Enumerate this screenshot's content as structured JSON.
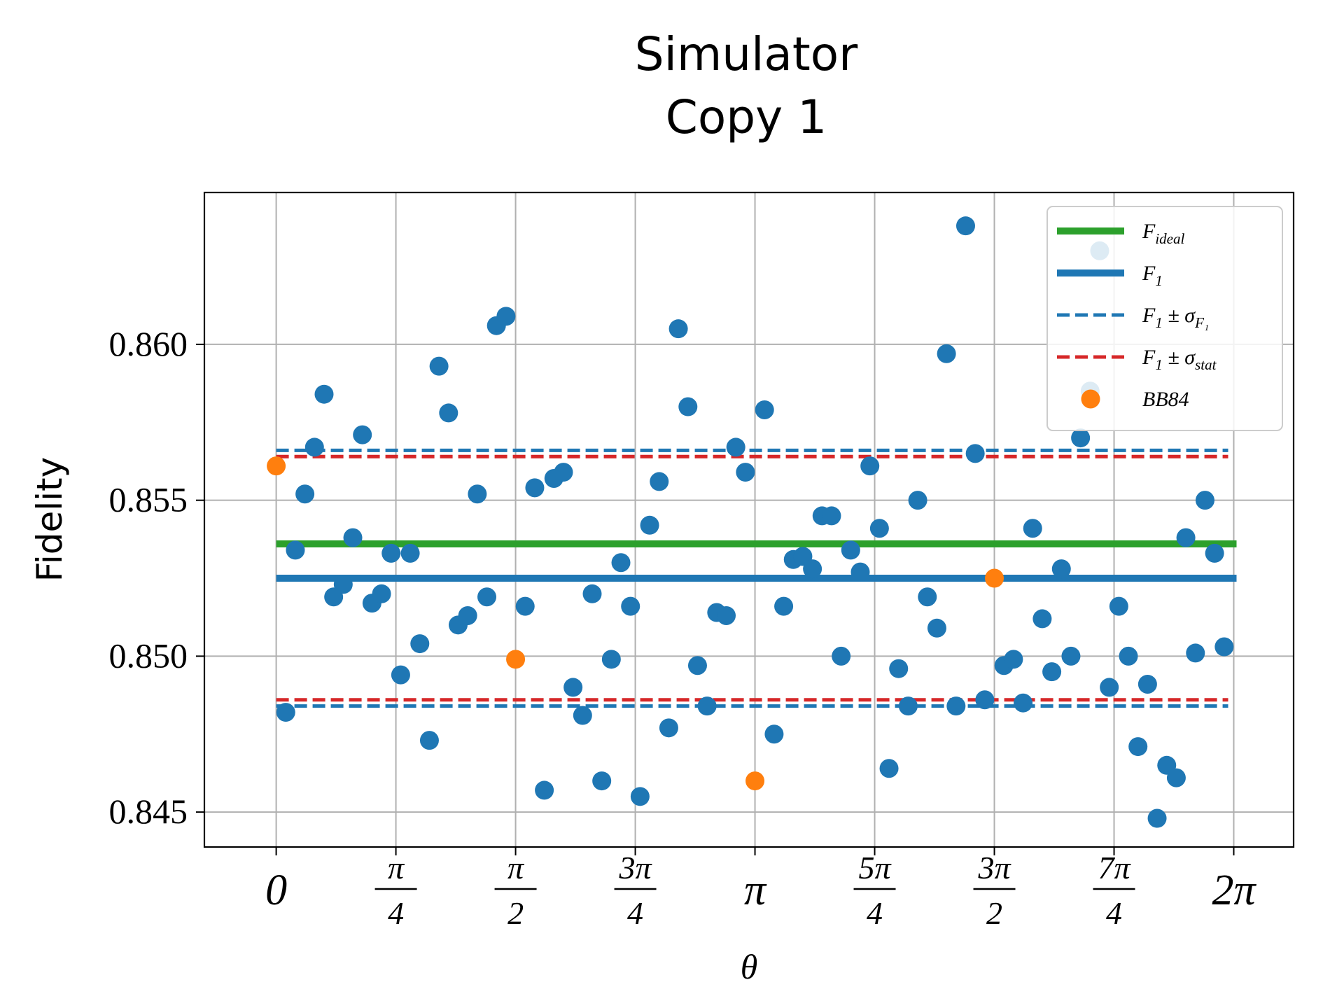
{
  "chart_data": {
    "type": "scatter",
    "title": [
      "Simulator",
      "Copy 1"
    ],
    "xlabel": "θ",
    "ylabel": "Fidelity",
    "xlim": [
      -0.4712,
      6.6759
    ],
    "ylim": [
      0.84388,
      0.86487
    ],
    "grid": true,
    "legend_position": "top-right",
    "x_ticks": [
      {
        "value": 0,
        "num": "0",
        "den": ""
      },
      {
        "value": 0.7854,
        "num": "π",
        "den": "4"
      },
      {
        "value": 1.5708,
        "num": "π",
        "den": "2"
      },
      {
        "value": 2.3562,
        "num": "3π",
        "den": "4"
      },
      {
        "value": 3.1416,
        "num": "π",
        "den": ""
      },
      {
        "value": 3.927,
        "num": "5π",
        "den": "4"
      },
      {
        "value": 4.7124,
        "num": "3π",
        "den": "2"
      },
      {
        "value": 5.4978,
        "num": "7π",
        "den": "4"
      },
      {
        "value": 6.2832,
        "num": "2π",
        "den": ""
      }
    ],
    "y_ticks": [
      {
        "value": 0.845,
        "label": "0.845"
      },
      {
        "value": 0.85,
        "label": "0.850"
      },
      {
        "value": 0.855,
        "label": "0.855"
      },
      {
        "value": 0.86,
        "label": "0.860"
      }
    ],
    "lines": [
      {
        "name": "F",
        "sub": "ideal",
        "value": 0.8536,
        "color": "#2ca02c",
        "style": "solid"
      },
      {
        "name": "F",
        "sub": "1",
        "value": 0.8525,
        "color": "#1f77b4",
        "style": "solid"
      },
      {
        "name": "F",
        "sub": "1",
        "pm": " ± σ",
        "sub2": "F₁",
        "values": [
          0.8484,
          0.8566
        ],
        "color": "#1f77b4",
        "style": "dashed"
      },
      {
        "name": "F",
        "sub": "1",
        "pm": " ± σ",
        "sub2": "stat",
        "values": [
          0.8486,
          0.8564
        ],
        "color": "#d62728",
        "style": "dashed"
      }
    ],
    "series": [
      {
        "name": "",
        "color": "#1f77b4",
        "points": [
          [
            0.0628,
            0.8482
          ],
          [
            0.1257,
            0.8534
          ],
          [
            0.1885,
            0.8552
          ],
          [
            0.2513,
            0.8567
          ],
          [
            0.3142,
            0.8584
          ],
          [
            0.377,
            0.8519
          ],
          [
            0.4398,
            0.8523
          ],
          [
            0.5027,
            0.8538
          ],
          [
            0.5655,
            0.8571
          ],
          [
            0.6283,
            0.8517
          ],
          [
            0.6912,
            0.852
          ],
          [
            0.754,
            0.8533
          ],
          [
            0.8168,
            0.8494
          ],
          [
            0.8796,
            0.8533
          ],
          [
            0.9425,
            0.8504
          ],
          [
            1.0053,
            0.8473
          ],
          [
            1.0681,
            0.8593
          ],
          [
            1.131,
            0.8578
          ],
          [
            1.1938,
            0.851
          ],
          [
            1.2566,
            0.8513
          ],
          [
            1.3195,
            0.8552
          ],
          [
            1.3823,
            0.8519
          ],
          [
            1.4451,
            0.8606
          ],
          [
            1.508,
            0.8609
          ],
          [
            1.6336,
            0.8516
          ],
          [
            1.6965,
            0.8554
          ],
          [
            1.7593,
            0.8457
          ],
          [
            1.8221,
            0.8557
          ],
          [
            1.885,
            0.8559
          ],
          [
            1.9478,
            0.849
          ],
          [
            2.0106,
            0.8481
          ],
          [
            2.0735,
            0.852
          ],
          [
            2.1363,
            0.846
          ],
          [
            2.1991,
            0.8499
          ],
          [
            2.2619,
            0.853
          ],
          [
            2.3248,
            0.8516
          ],
          [
            2.3876,
            0.8455
          ],
          [
            2.4504,
            0.8542
          ],
          [
            2.5133,
            0.8556
          ],
          [
            2.5761,
            0.8477
          ],
          [
            2.6389,
            0.8605
          ],
          [
            2.7018,
            0.858
          ],
          [
            2.7646,
            0.8497
          ],
          [
            2.8274,
            0.8484
          ],
          [
            2.8903,
            0.8514
          ],
          [
            2.9531,
            0.8513
          ],
          [
            3.0159,
            0.8567
          ],
          [
            3.0788,
            0.8559
          ],
          [
            3.2044,
            0.8579
          ],
          [
            3.2673,
            0.8475
          ],
          [
            3.3301,
            0.8516
          ],
          [
            3.3929,
            0.8531
          ],
          [
            3.4558,
            0.8532
          ],
          [
            3.5186,
            0.8528
          ],
          [
            3.5814,
            0.8545
          ],
          [
            3.6442,
            0.8545
          ],
          [
            3.7071,
            0.85
          ],
          [
            3.7699,
            0.8534
          ],
          [
            3.8327,
            0.8527
          ],
          [
            3.8956,
            0.8561
          ],
          [
            3.9584,
            0.8541
          ],
          [
            4.0212,
            0.8464
          ],
          [
            4.0841,
            0.8496
          ],
          [
            4.1469,
            0.8484
          ],
          [
            4.2097,
            0.855
          ],
          [
            4.2726,
            0.8519
          ],
          [
            4.3354,
            0.8509
          ],
          [
            4.3982,
            0.8597
          ],
          [
            4.4611,
            0.8484
          ],
          [
            4.5239,
            0.8638
          ],
          [
            4.5867,
            0.8565
          ],
          [
            4.6496,
            0.8486
          ],
          [
            4.7752,
            0.8497
          ],
          [
            4.8381,
            0.8499
          ],
          [
            4.9009,
            0.8485
          ],
          [
            4.9637,
            0.8541
          ],
          [
            5.0265,
            0.8512
          ],
          [
            5.0894,
            0.8495
          ],
          [
            5.1522,
            0.8528
          ],
          [
            5.215,
            0.85
          ],
          [
            5.2779,
            0.857
          ],
          [
            5.3407,
            0.8585
          ],
          [
            5.4035,
            0.863
          ],
          [
            5.4664,
            0.849
          ],
          [
            5.5292,
            0.8516
          ],
          [
            5.592,
            0.85
          ],
          [
            5.6549,
            0.8471
          ],
          [
            5.7177,
            0.8491
          ],
          [
            5.7805,
            0.8448
          ],
          [
            5.8434,
            0.8465
          ],
          [
            5.9062,
            0.8461
          ],
          [
            5.969,
            0.8538
          ],
          [
            6.0319,
            0.8501
          ],
          [
            6.0947,
            0.855
          ],
          [
            6.1575,
            0.8533
          ],
          [
            6.2204,
            0.8503
          ]
        ]
      },
      {
        "name": "BB84",
        "color": "#ff7f0e",
        "points": [
          [
            0.0,
            0.8561
          ],
          [
            1.5708,
            0.8499
          ],
          [
            3.1416,
            0.846
          ],
          [
            4.7124,
            0.8525
          ]
        ]
      }
    ]
  }
}
